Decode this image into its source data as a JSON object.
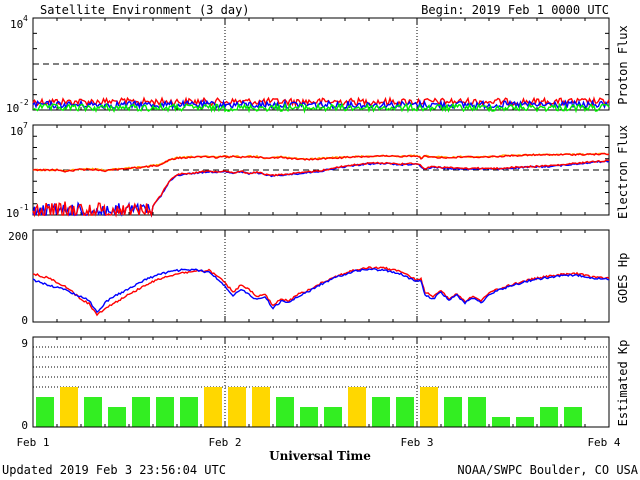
{
  "header": {
    "title": "Satellite Environment (3 day)",
    "begin": "Begin:  2019 Feb 1 0000 UTC"
  },
  "footer": {
    "updated": "Updated 2019 Feb  3 23:56:04 UTC",
    "source": "NOAA/SWPC Boulder, CO USA"
  },
  "colors": {
    "red": "#ff0000",
    "blue": "#0000ff",
    "green": "#00ee00",
    "orange": "#ffa500",
    "kp_green": "#33ee22",
    "kp_yellow": "#ffd700"
  },
  "chart_data": [
    {
      "type": "line",
      "ylabel": "Proton Flux",
      "yscale": "log",
      "ylim": [
        0.01,
        10000
      ],
      "yticks": [
        {
          "label": "10",
          "exp": "4"
        },
        {
          "label": "10",
          "exp": "-2"
        }
      ],
      "threshold": 10,
      "xlim": [
        0,
        72
      ],
      "series": [
        {
          "color": "red",
          "level": 0.035,
          "noise": 0.0
        },
        {
          "color": "blue",
          "level": 0.022,
          "noise": 0.0
        },
        {
          "color": "green",
          "level": 0.014,
          "noise": 0.0
        }
      ]
    },
    {
      "type": "line",
      "ylabel": "Electron Flux",
      "yscale": "log",
      "ylim": [
        0.1,
        10000000
      ],
      "yticks": [
        {
          "label": "10",
          "exp": "7"
        },
        {
          "label": "10",
          "exp": "-1"
        }
      ],
      "threshold": 1000,
      "xlim": [
        0,
        72
      ],
      "series": [
        {
          "color": "orange",
          "x": [
            0,
            3,
            4,
            6,
            8,
            9,
            10,
            12,
            14,
            16,
            17,
            18,
            20,
            21,
            22,
            23,
            24,
            24.5,
            25,
            26,
            27,
            28,
            29,
            30,
            31,
            32,
            34,
            36,
            38,
            40,
            42,
            44,
            46,
            48,
            48.5,
            49,
            50,
            52,
            54,
            56,
            58,
            60,
            62,
            64,
            66,
            68,
            70,
            72
          ],
          "y": [
            1000,
            1000,
            800,
            1200,
            1200,
            900,
            1200,
            1500,
            2000,
            3000,
            8000,
            12000,
            15000,
            16000,
            15000,
            14000,
            17000,
            14000,
            17000,
            15000,
            17000,
            16000,
            12000,
            13000,
            15000,
            12000,
            9000,
            11000,
            13000,
            15000,
            17000,
            18000,
            17000,
            20000,
            12000,
            18000,
            15000,
            13000,
            16000,
            15000,
            17000,
            20000,
            22000,
            23000,
            24000,
            25000,
            26000,
            27000
          ]
        },
        {
          "color": "red",
          "x": [
            0,
            3,
            4,
            6,
            8,
            9,
            10,
            12,
            14,
            16,
            17,
            18,
            20,
            21,
            22,
            23,
            24,
            24.5,
            25,
            26,
            27,
            28,
            29,
            30,
            31,
            32,
            34,
            36,
            38,
            40,
            42,
            44,
            46,
            48,
            48.5,
            49,
            50,
            52,
            54,
            56,
            58,
            60,
            62,
            64,
            66,
            68,
            70,
            72
          ],
          "y": [
            1000,
            1000,
            750,
            1100,
            1100,
            850,
            1100,
            1400,
            1900,
            2800,
            7500,
            11000,
            14000,
            15000,
            14000,
            13000,
            16000,
            13000,
            16000,
            14000,
            16000,
            15000,
            11000,
            12000,
            14000,
            11000,
            8500,
            10000,
            12000,
            14000,
            16000,
            17000,
            16000,
            19000,
            11000,
            17000,
            14000,
            12000,
            15000,
            14000,
            16000,
            19000,
            21000,
            22000,
            23000,
            24000,
            25000,
            26000
          ]
        },
        {
          "color": "blue",
          "x": [
            0,
            2,
            4,
            6,
            8,
            10,
            12,
            14,
            15,
            16,
            17,
            18,
            19,
            20,
            21,
            22,
            23,
            24,
            25,
            26,
            27,
            28,
            29,
            30,
            32,
            34,
            36,
            38,
            40,
            42,
            44,
            46,
            48,
            49,
            50,
            52,
            54,
            56,
            58,
            60,
            62,
            64,
            66,
            68,
            70,
            72
          ],
          "y": [
            0.3,
            0.4,
            0.5,
            0.4,
            0.5,
            0.4,
            0.5,
            0.4,
            0.6,
            5,
            80,
            350,
            420,
            500,
            600,
            700,
            650,
            800,
            500,
            700,
            450,
            600,
            350,
            300,
            400,
            550,
            800,
            1500,
            2500,
            3500,
            3800,
            3000,
            3500,
            1200,
            1800,
            1400,
            1200,
            1300,
            1200,
            1500,
            1800,
            2000,
            2500,
            3500,
            5000,
            6000
          ]
        },
        {
          "color": "red",
          "x": [
            0,
            2,
            4,
            6,
            8,
            10,
            12,
            14,
            15,
            16,
            17,
            18,
            19,
            20,
            21,
            22,
            23,
            24,
            25,
            26,
            27,
            28,
            29,
            30,
            32,
            34,
            36,
            38,
            40,
            42,
            44,
            46,
            48,
            49,
            50,
            52,
            54,
            56,
            58,
            60,
            62,
            64,
            66,
            68,
            70,
            72
          ],
          "y": [
            0.35,
            0.45,
            0.6,
            0.45,
            0.55,
            0.45,
            0.55,
            0.45,
            0.7,
            6,
            100,
            400,
            480,
            560,
            680,
            780,
            720,
            900,
            560,
            780,
            500,
            680,
            400,
            340,
            450,
            620,
            900,
            1700,
            2800,
            4000,
            4300,
            3400,
            4000,
            1400,
            2000,
            1600,
            1400,
            1450,
            1350,
            1700,
            2000,
            2300,
            2800,
            4000,
            5500,
            7000
          ]
        }
      ]
    },
    {
      "type": "line",
      "ylabel": "GOES Hp",
      "ylim": [
        0,
        200
      ],
      "yticks": [
        "200",
        "0"
      ],
      "xlim": [
        0,
        72
      ],
      "series": [
        {
          "color": "red",
          "x": [
            0,
            2,
            4,
            6,
            7,
            8,
            9,
            10,
            12,
            14,
            16,
            18,
            20,
            22,
            23,
            24,
            25,
            26,
            27,
            28,
            29,
            30,
            31,
            32,
            33,
            34,
            35,
            36,
            38,
            40,
            42,
            44,
            46,
            47,
            48,
            48.5,
            49,
            50,
            51,
            52,
            53,
            54,
            55,
            56,
            57,
            58,
            60,
            62,
            64,
            66,
            68,
            70,
            72
          ],
          "y": [
            105,
            95,
            78,
            50,
            40,
            15,
            30,
            40,
            60,
            80,
            95,
            105,
            110,
            112,
            100,
            85,
            65,
            80,
            70,
            55,
            60,
            35,
            50,
            45,
            60,
            65,
            75,
            85,
            100,
            112,
            118,
            117,
            110,
            100,
            90,
            95,
            65,
            55,
            70,
            50,
            62,
            45,
            55,
            45,
            65,
            70,
            82,
            92,
            98,
            103,
            105,
            98,
            95
          ]
        },
        {
          "color": "blue",
          "x": [
            0,
            2,
            4,
            6,
            7,
            8,
            9,
            10,
            12,
            14,
            16,
            18,
            20,
            22,
            23,
            24,
            25,
            26,
            27,
            28,
            29,
            30,
            31,
            32,
            33,
            34,
            35,
            36,
            38,
            40,
            42,
            44,
            46,
            47,
            48,
            48.5,
            49,
            50,
            51,
            52,
            53,
            54,
            55,
            56,
            57,
            58,
            60,
            62,
            64,
            66,
            68,
            70,
            72
          ],
          "y": [
            92,
            80,
            70,
            55,
            48,
            20,
            42,
            55,
            72,
            92,
            105,
            112,
            114,
            108,
            95,
            78,
            58,
            70,
            60,
            48,
            55,
            30,
            45,
            42,
            55,
            62,
            72,
            82,
            98,
            110,
            115,
            112,
            105,
            95,
            88,
            90,
            58,
            50,
            65,
            48,
            58,
            42,
            52,
            42,
            60,
            68,
            80,
            90,
            96,
            100,
            102,
            96,
            92
          ]
        }
      ]
    },
    {
      "type": "bar",
      "ylabel": "Estimated Kp",
      "ylim": [
        0,
        9
      ],
      "yticks": [
        "9",
        "0"
      ],
      "xlabel": "Universal Time",
      "x_tick_labels": [
        "Feb 1",
        "Feb 2",
        "Feb 3",
        "Feb 4"
      ],
      "values": [
        3.0,
        4.0,
        3.0,
        2.0,
        3.0,
        3.0,
        3.0,
        4.0,
        4.0,
        4.0,
        3.0,
        2.0,
        2.0,
        4.0,
        3.0,
        3.0,
        4.0,
        3.0,
        3.0,
        1.0,
        1.0,
        2.0,
        2.0,
        0
      ],
      "bar_colors": [
        "green",
        "yellow",
        "green",
        "green",
        "green",
        "green",
        "green",
        "yellow",
        "yellow",
        "yellow",
        "green",
        "green",
        "green",
        "yellow",
        "green",
        "green",
        "yellow",
        "green",
        "green",
        "green",
        "green",
        "green",
        "green",
        "green"
      ]
    }
  ]
}
